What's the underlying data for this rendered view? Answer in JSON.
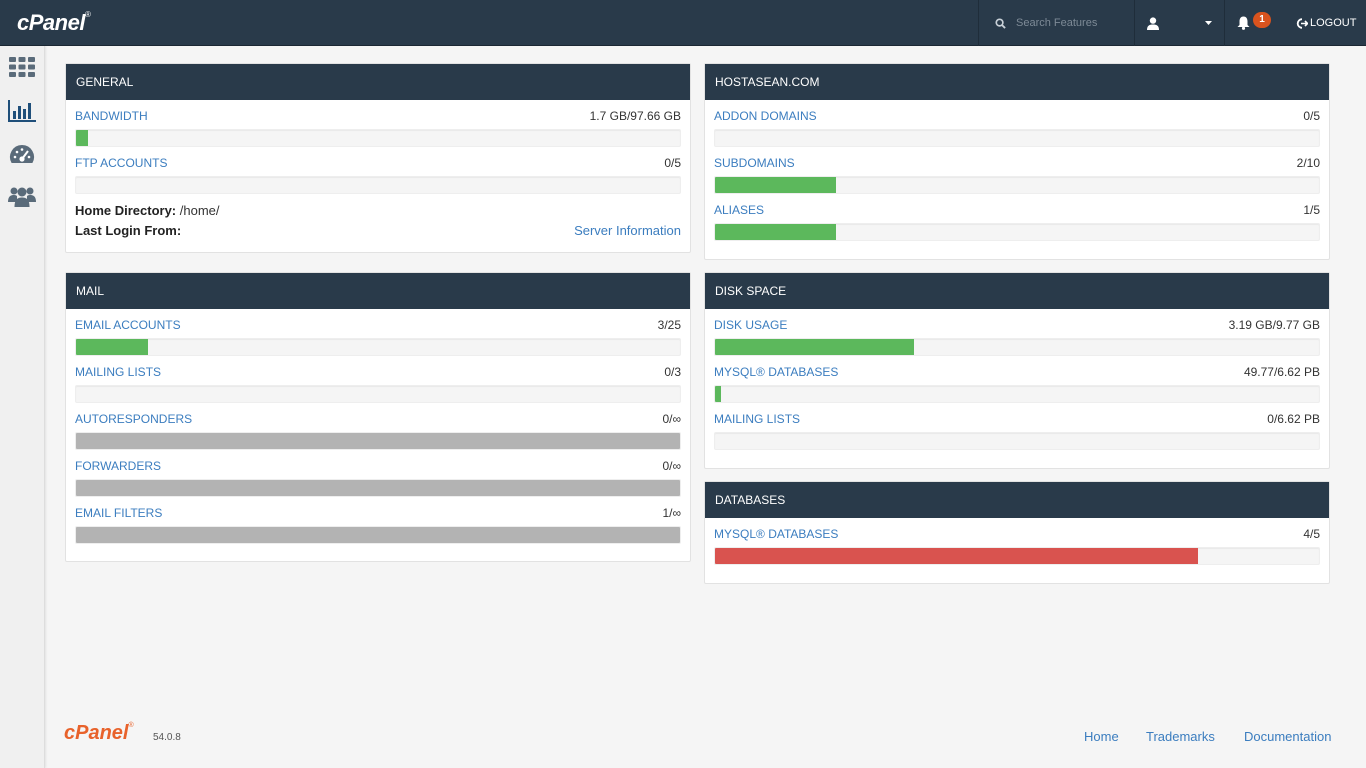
{
  "topbar": {
    "logo_text": "cPanel",
    "logo_mark": "®",
    "search_placeholder": "Search Features",
    "notification_count": "1",
    "logout_label": "LOGOUT",
    "icons": [
      "search-icon",
      "user-icon",
      "caret-down-icon",
      "bell-icon",
      "logout-icon"
    ]
  },
  "sidebar": {
    "items": [
      "grid-icon",
      "stats-icon",
      "dashboard-icon",
      "users-icon"
    ]
  },
  "general": {
    "title": "GENERAL",
    "stats": [
      {
        "label": "BANDWIDTH",
        "value": "1.7 GB/97.66 GB",
        "fill": 0.02,
        "color": "#5cb85c"
      },
      {
        "label": "FTP ACCOUNTS",
        "value": "0/5",
        "fill": 0.0,
        "color": "#5cb85c"
      }
    ],
    "home_dir_label": "Home Directory:",
    "home_dir_value": "/home/",
    "last_login_label": "Last Login From:",
    "server_info_link": "Server Information"
  },
  "domain": {
    "title": "HOSTASEAN.COM",
    "stats": [
      {
        "label": "ADDON DOMAINS",
        "value": "0/5",
        "fill": 0.0,
        "color": "#5cb85c"
      },
      {
        "label": "SUBDOMAINS",
        "value": "2/10",
        "fill": 0.2,
        "color": "#5cb85c"
      },
      {
        "label": "ALIASES",
        "value": "1/5",
        "fill": 0.2,
        "color": "#5cb85c"
      }
    ]
  },
  "mail": {
    "title": "MAIL",
    "stats": [
      {
        "label": "EMAIL ACCOUNTS",
        "value": "3/25",
        "fill": 0.12,
        "color": "#5cb85c"
      },
      {
        "label": "MAILING LISTS",
        "value": "0/3",
        "fill": 0.0,
        "color": "#5cb85c"
      },
      {
        "label": "AUTORESPONDERS",
        "value": "0/∞",
        "fill": 1.0,
        "color": "#b3b3b3"
      },
      {
        "label": "FORWARDERS",
        "value": "0/∞",
        "fill": 1.0,
        "color": "#b3b3b3"
      },
      {
        "label": "EMAIL FILTERS",
        "value": "1/∞",
        "fill": 1.0,
        "color": "#b3b3b3"
      }
    ]
  },
  "disk": {
    "title": "DISK SPACE",
    "stats": [
      {
        "label": "DISK USAGE",
        "value": "3.19 GB/9.77 GB",
        "fill": 0.33,
        "color": "#5cb85c"
      },
      {
        "label": "MYSQL® DATABASES",
        "value": "49.77/6.62 PB",
        "fill": 0.01,
        "color": "#5cb85c"
      },
      {
        "label": "MAILING LISTS",
        "value": "0/6.62 PB",
        "fill": 0.0,
        "color": "#5cb85c"
      }
    ]
  },
  "databases": {
    "title": "DATABASES",
    "stats": [
      {
        "label": "MYSQL® DATABASES",
        "value": "4/5",
        "fill": 0.8,
        "color": "#d9534f"
      }
    ]
  },
  "footer": {
    "logo_text": "cPanel",
    "logo_mark": "®",
    "version": "54.0.8",
    "links": [
      "Home",
      "Trademarks",
      "Documentation"
    ]
  }
}
